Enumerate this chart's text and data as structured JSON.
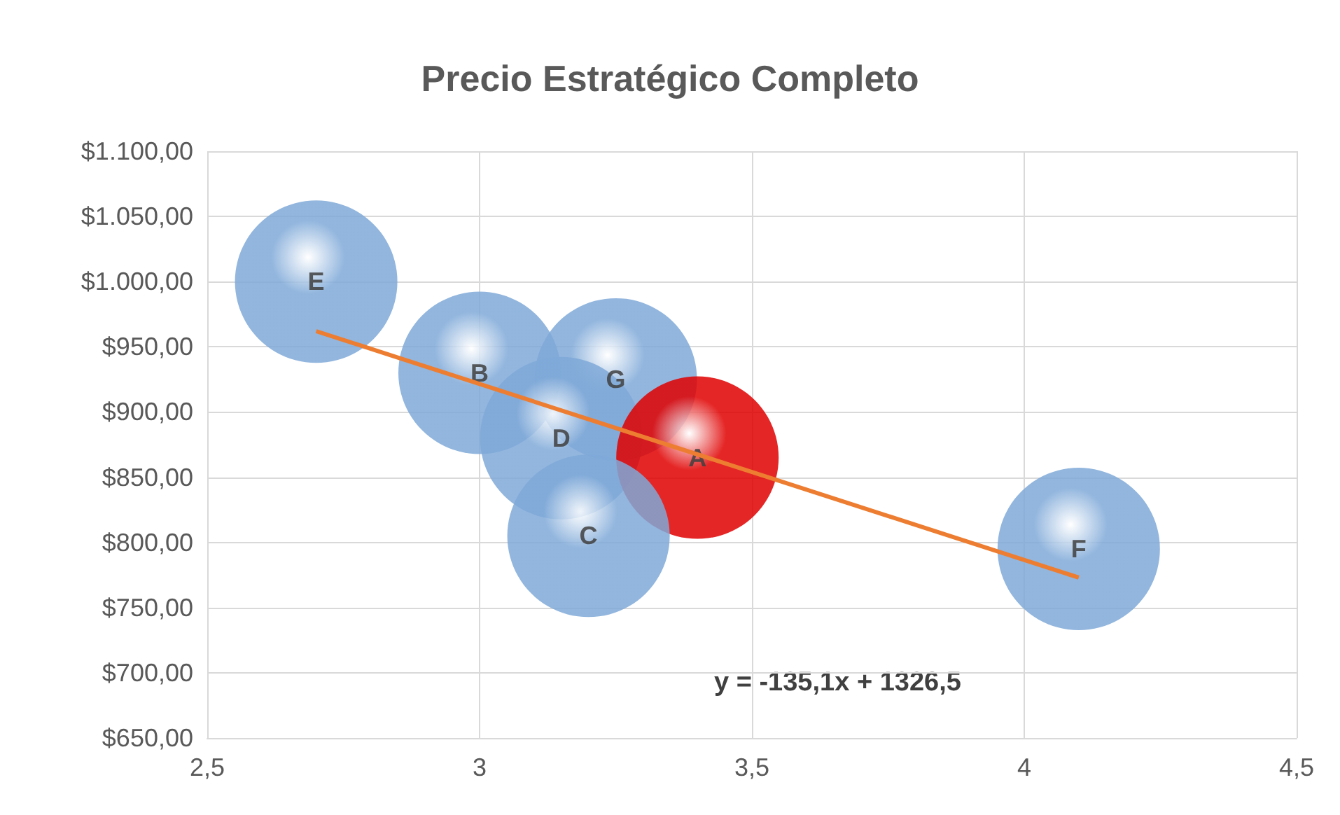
{
  "chart_data": {
    "type": "bubble",
    "title": "Precio Estratégico Completo",
    "series": [
      {
        "x": [
          2.7,
          3.0,
          3.25,
          3.15,
          3.4,
          3.2,
          4.1
        ],
        "values": [
          1000,
          930,
          925,
          880,
          865,
          805,
          795
        ],
        "sizes": [
          1,
          1,
          1,
          1,
          1,
          1,
          1
        ],
        "colors": [
          "#7fa9d8",
          "#7fa9d8",
          "#7fa9d8",
          "#7fa9d8",
          "#e00000",
          "#7fa9d8",
          "#7fa9d8"
        ],
        "value_labels": [
          "E",
          "B",
          "G",
          "D",
          "A",
          "C",
          "F"
        ]
      },
      {
        "type": "line",
        "x": [
          2.7,
          4.1
        ],
        "values": [
          962,
          773
        ],
        "color": "#ed7d31"
      }
    ],
    "annotations": [
      "y = -135,1x + 1326,5"
    ],
    "xlim": [
      2.5,
      4.5
    ],
    "xticks": [
      {
        "value": 2.5,
        "label": "2,5"
      },
      {
        "value": 3,
        "label": "3"
      },
      {
        "value": 3.5,
        "label": "3,5"
      },
      {
        "value": 4,
        "label": "4"
      },
      {
        "value": 4.5,
        "label": "4,5"
      }
    ],
    "ylim": [
      650,
      1100
    ],
    "yticks": [
      {
        "value": 650,
        "label": "$650,00"
      },
      {
        "value": 700,
        "label": "$700,00"
      },
      {
        "value": 750,
        "label": "$750,00"
      },
      {
        "value": 800,
        "label": "$800,00"
      },
      {
        "value": 850,
        "label": "$850,00"
      },
      {
        "value": 900,
        "label": "$900,00"
      },
      {
        "value": 950,
        "label": "$950,00"
      },
      {
        "value": 1000,
        "label": "$1.000,00"
      },
      {
        "value": 1050,
        "label": "$1.050,00"
      },
      {
        "value": 1100,
        "label": "$1.100,00"
      }
    ],
    "grid": true
  }
}
